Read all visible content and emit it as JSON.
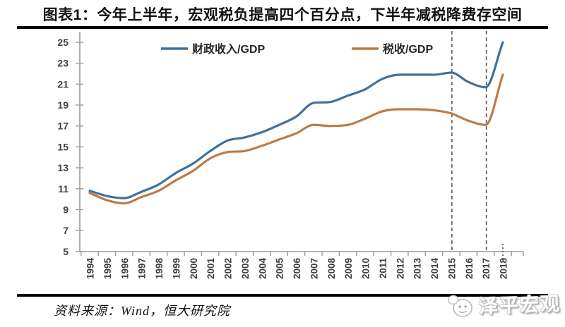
{
  "page": {
    "title": "图表1：今年上半年，宏观税负提高四个百分点，下半年减税降费存空间",
    "source": "资料来源：Wind，恒大研究院",
    "watermark": "泽平宏观"
  },
  "chart_data": {
    "type": "line",
    "title": "图表1：今年上半年，宏观税负提高四个百分点，下半年减税降费存空间",
    "categories": [
      "1994",
      "1995",
      "1996",
      "1997",
      "1998",
      "1999",
      "2000",
      "2001",
      "2002",
      "2003",
      "2004",
      "2005",
      "2006",
      "2007",
      "2008",
      "2009",
      "2010",
      "2011",
      "2012",
      "2013",
      "2014",
      "2015",
      "2016",
      "2017",
      "2018"
    ],
    "series": [
      {
        "name": "财政收入/GDP",
        "color": "#41719C",
        "values": [
          10.8,
          10.3,
          10.1,
          10.7,
          11.4,
          12.5,
          13.4,
          14.6,
          15.6,
          15.9,
          16.4,
          17.1,
          17.9,
          19.2,
          19.3,
          19.9,
          20.5,
          21.5,
          21.9,
          21.9,
          21.9,
          22.1,
          21.2,
          20.7,
          25.0
        ]
      },
      {
        "name": "税收/GDP",
        "color": "#BE7B45",
        "values": [
          10.6,
          9.9,
          9.6,
          10.2,
          10.8,
          11.8,
          12.7,
          13.9,
          14.5,
          14.6,
          15.1,
          15.7,
          16.3,
          17.1,
          17.0,
          17.1,
          17.7,
          18.4,
          18.6,
          18.6,
          18.5,
          18.2,
          17.5,
          17.1,
          21.9
        ]
      }
    ],
    "ylim": [
      5,
      25
    ],
    "ytick_step": 2,
    "xlabel": "",
    "ylabel": "",
    "grid": false,
    "legend_position": "top",
    "axis_color": "#9a9a9a",
    "tick_label_color": "#3f3f3f",
    "annotations": {
      "dashed_vlines_years": [
        "2015",
        "2017"
      ],
      "dotted_axis_marker_year": "2018",
      "dash_color": "#595959"
    }
  }
}
